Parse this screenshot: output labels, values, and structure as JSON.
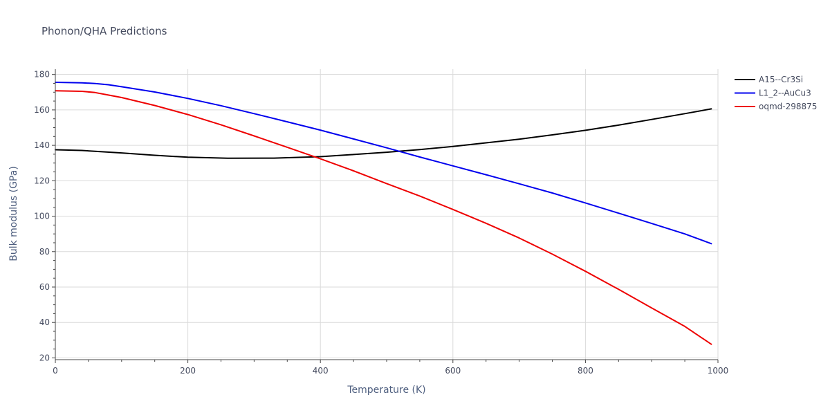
{
  "chart_data": {
    "type": "line",
    "title": "Phonon/QHA Predictions",
    "xlabel": "Temperature (K)",
    "ylabel": "Bulk modulus (GPa)",
    "xlim": [
      0,
      1000
    ],
    "ylim": [
      19,
      183
    ],
    "x_ticks": [
      0,
      200,
      400,
      600,
      800,
      1000
    ],
    "y_ticks": [
      20,
      40,
      60,
      80,
      100,
      120,
      140,
      160,
      180
    ],
    "grid": true,
    "legend_position": "top-right",
    "series": [
      {
        "name": "A15--Cr3Si",
        "color": "#000000",
        "x": [
          0,
          40,
          60,
          100,
          150,
          200,
          260,
          330,
          400,
          450,
          500,
          550,
          600,
          650,
          700,
          750,
          800,
          850,
          900,
          950,
          990
        ],
        "y": [
          137.5,
          137.1,
          136.6,
          135.7,
          134.4,
          133.3,
          132.7,
          132.8,
          133.6,
          134.8,
          136.1,
          137.6,
          139.4,
          141.4,
          143.5,
          145.9,
          148.5,
          151.4,
          154.6,
          157.9,
          160.6
        ]
      },
      {
        "name": "L1_2--AuCu3",
        "color": "#0000ee",
        "x": [
          0,
          40,
          60,
          80,
          100,
          150,
          200,
          250,
          300,
          350,
          400,
          450,
          500,
          550,
          600,
          650,
          700,
          750,
          800,
          850,
          900,
          950,
          990
        ],
        "y": [
          175.6,
          175.3,
          174.9,
          174.2,
          173.1,
          170.1,
          166.5,
          162.4,
          157.9,
          153.3,
          148.6,
          143.6,
          138.6,
          133.4,
          128.4,
          123.4,
          118.3,
          113.1,
          107.5,
          101.7,
          95.9,
          90.0,
          84.5
        ]
      },
      {
        "name": "oqmd-298875",
        "color": "#ee0000",
        "x": [
          0,
          40,
          60,
          80,
          100,
          150,
          200,
          250,
          300,
          350,
          400,
          450,
          500,
          550,
          600,
          650,
          700,
          750,
          800,
          850,
          900,
          950,
          990
        ],
        "y": [
          170.8,
          170.5,
          169.8,
          168.4,
          167.0,
          162.5,
          157.4,
          151.6,
          145.3,
          138.9,
          132.4,
          125.6,
          118.4,
          111.4,
          103.8,
          96.0,
          87.7,
          78.6,
          68.9,
          58.7,
          48.2,
          37.8,
          27.7
        ]
      }
    ]
  }
}
